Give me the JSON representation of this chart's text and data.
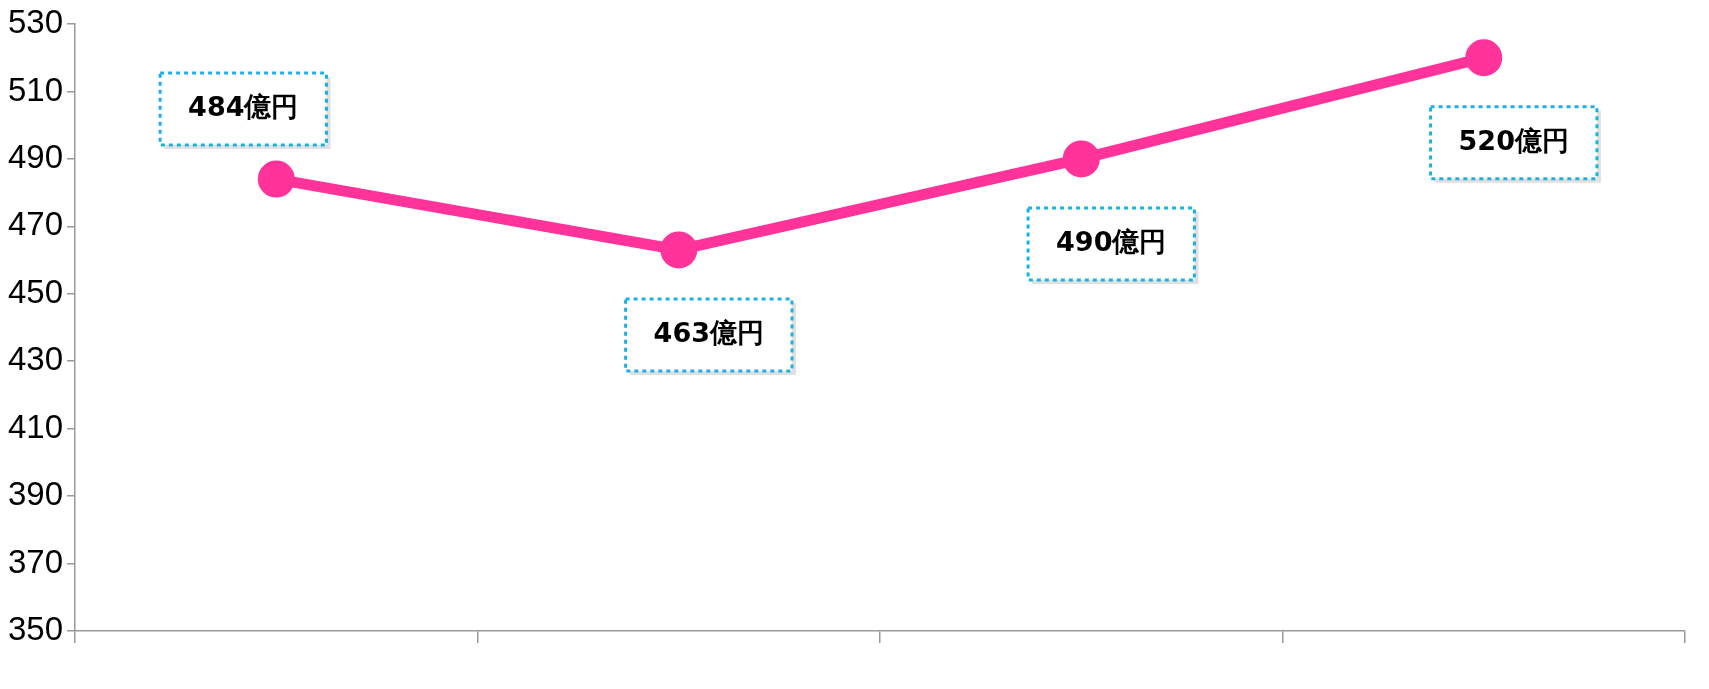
{
  "chart_data": {
    "type": "line",
    "categories": [
      null,
      null,
      null,
      null
    ],
    "series": [
      {
        "color": "#ff3399",
        "values": [
          484,
          463,
          490,
          520
        ],
        "value_labels": [
          "484億円",
          "463億円",
          "490億円",
          "520億円"
        ]
      }
    ],
    "ylim": [
      350,
      530
    ],
    "yticks": [
      350,
      370,
      390,
      410,
      430,
      450,
      470,
      490,
      510,
      530
    ],
    "grid": false,
    "legend": false,
    "marker": "circle",
    "line_style": "solid"
  }
}
